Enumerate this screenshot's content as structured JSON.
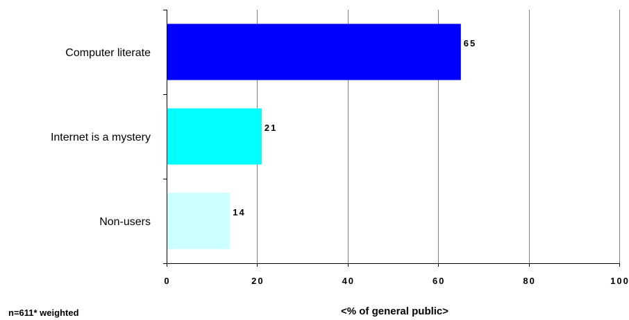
{
  "chart_data": {
    "type": "bar",
    "orientation": "horizontal",
    "categories": [
      "Computer literate",
      "Internet is a mystery",
      "Non-users"
    ],
    "values": [
      65,
      21,
      14
    ],
    "colors": [
      "#0000ff",
      "#00ffff",
      "#ccffff"
    ],
    "xlabel": "<% of general public>",
    "xlim": [
      0,
      100
    ],
    "xticks": [
      0,
      20,
      40,
      60,
      80,
      100
    ],
    "grid": "vertical",
    "data_labels": [
      "65",
      "21",
      "14"
    ]
  },
  "footnote": "n=611* weighted"
}
